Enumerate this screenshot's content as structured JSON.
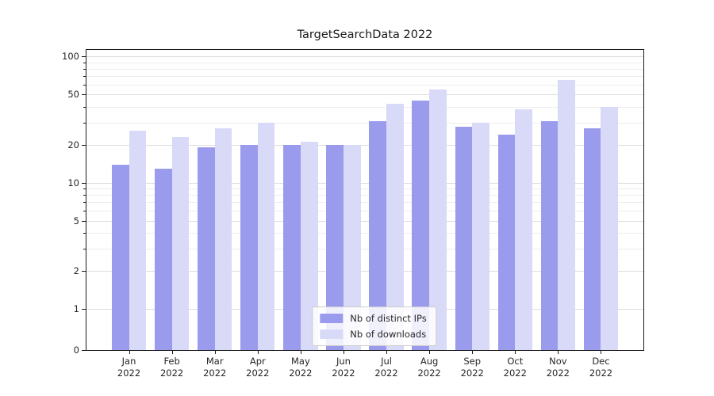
{
  "title": "TargetSearchData 2022",
  "chart_data": {
    "type": "bar",
    "title": "TargetSearchData 2022",
    "categories": [
      "Jan",
      "Feb",
      "Mar",
      "Apr",
      "May",
      "Jun",
      "Jul",
      "Aug",
      "Sep",
      "Oct",
      "Nov",
      "Dec"
    ],
    "year_label": "2022",
    "series": [
      {
        "name": "Nb of distinct IPs",
        "color": "#9b9bee",
        "values": [
          14,
          13,
          19,
          20,
          20,
          20,
          31,
          45,
          28,
          24,
          31,
          27
        ]
      },
      {
        "name": "Nb of downloads",
        "color": "#d9d9f8",
        "values": [
          26,
          23,
          27,
          30,
          21,
          20,
          42,
          55,
          30,
          38,
          65,
          40
        ]
      }
    ],
    "yscale": "symlog",
    "ylim": [
      0,
      113
    ],
    "y_major_ticks": [
      0,
      1,
      2,
      5,
      10,
      20,
      50,
      100
    ],
    "y_minor_ticks": [
      3,
      4,
      6,
      7,
      8,
      9,
      30,
      40,
      60,
      70,
      80,
      90
    ],
    "xlabel": "",
    "ylabel": "",
    "grid": true,
    "legend_position": "lower center"
  }
}
